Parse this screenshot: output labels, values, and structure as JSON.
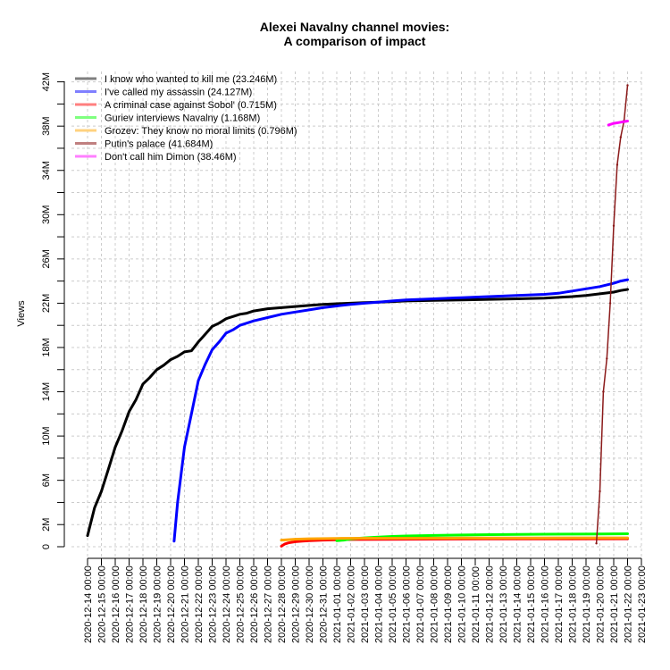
{
  "chart_data": {
    "type": "line",
    "title_line1": "Alexei Navalny channel movies:",
    "title_line2": "A comparison of impact",
    "xlabel": "",
    "ylabel": "Views",
    "x_tick_labels": [
      "2020-12-14 00:00",
      "2020-12-15 00:00",
      "2020-12-16 00:00",
      "2020-12-17 00:00",
      "2020-12-18 00:00",
      "2020-12-19 00:00",
      "2020-12-20 00:00",
      "2020-12-21 00:00",
      "2020-12-22 00:00",
      "2020-12-23 00:00",
      "2020-12-24 00:00",
      "2020-12-25 00:00",
      "2020-12-26 00:00",
      "2020-12-27 00:00",
      "2020-12-28 00:00",
      "2020-12-29 00:00",
      "2020-12-30 00:00",
      "2020-12-31 00:00",
      "2021-01-01 00:00",
      "2021-01-02 00:00",
      "2021-01-03 00:00",
      "2021-01-04 00:00",
      "2021-01-05 00:00",
      "2021-01-06 00:00",
      "2021-01-07 00:00",
      "2021-01-08 00:00",
      "2021-01-09 00:00",
      "2021-01-10 00:00",
      "2021-01-11 00:00",
      "2021-01-12 00:00",
      "2021-01-13 00:00",
      "2021-01-14 00:00",
      "2021-01-15 00:00",
      "2021-01-16 00:00",
      "2021-01-17 00:00",
      "2021-01-18 00:00",
      "2021-01-19 00:00",
      "2021-01-20 00:00",
      "2021-01-21 00:00",
      "2021-01-22 00:00",
      "2021-01-23 00:00"
    ],
    "y_tick_labels": [
      "0",
      "2M",
      "6M",
      "10M",
      "14M",
      "18M",
      "22M",
      "26M",
      "30M",
      "34M",
      "38M",
      "42M"
    ],
    "y_ticks": [
      0,
      2,
      6,
      10,
      14,
      18,
      22,
      26,
      30,
      34,
      38,
      42
    ],
    "y_unit": "millions of views",
    "ylim": [
      0,
      42
    ],
    "grid": true,
    "legend_position": "top-left",
    "series": [
      {
        "name": "I know who wanted to kill me (23.246M)",
        "color": "#000000",
        "legend_color": "#7f7f7f",
        "points": [
          [
            "2020-12-14 00:00",
            1.0
          ],
          [
            "2020-12-14 12:00",
            3.5
          ],
          [
            "2020-12-15 00:00",
            5.0
          ],
          [
            "2020-12-15 12:00",
            7.0
          ],
          [
            "2020-12-16 00:00",
            9.0
          ],
          [
            "2020-12-16 12:00",
            10.5
          ],
          [
            "2020-12-17 00:00",
            12.2
          ],
          [
            "2020-12-17 12:00",
            13.3
          ],
          [
            "2020-12-18 00:00",
            14.7
          ],
          [
            "2020-12-18 12:00",
            15.3
          ],
          [
            "2020-12-19 00:00",
            16.0
          ],
          [
            "2020-12-19 12:00",
            16.4
          ],
          [
            "2020-12-20 00:00",
            16.9
          ],
          [
            "2020-12-20 12:00",
            17.2
          ],
          [
            "2020-12-21 00:00",
            17.6
          ],
          [
            "2020-12-21 12:00",
            17.7
          ],
          [
            "2020-12-22 00:00",
            18.5
          ],
          [
            "2020-12-22 12:00",
            19.2
          ],
          [
            "2020-12-23 00:00",
            19.9
          ],
          [
            "2020-12-23 12:00",
            20.2
          ],
          [
            "2020-12-24 00:00",
            20.6
          ],
          [
            "2020-12-24 12:00",
            20.8
          ],
          [
            "2020-12-25 00:00",
            21.0
          ],
          [
            "2020-12-25 12:00",
            21.1
          ],
          [
            "2020-12-26 00:00",
            21.3
          ],
          [
            "2020-12-27 00:00",
            21.5
          ],
          [
            "2020-12-28 00:00",
            21.6
          ],
          [
            "2020-12-29 00:00",
            21.7
          ],
          [
            "2020-12-30 00:00",
            21.8
          ],
          [
            "2020-12-31 00:00",
            21.9
          ],
          [
            "2021-01-01 00:00",
            21.95
          ],
          [
            "2021-01-02 00:00",
            22.0
          ],
          [
            "2021-01-03 00:00",
            22.05
          ],
          [
            "2021-01-04 00:00",
            22.1
          ],
          [
            "2021-01-05 00:00",
            22.15
          ],
          [
            "2021-01-06 00:00",
            22.2
          ],
          [
            "2021-01-08 00:00",
            22.25
          ],
          [
            "2021-01-10 00:00",
            22.3
          ],
          [
            "2021-01-12 00:00",
            22.35
          ],
          [
            "2021-01-14 00:00",
            22.4
          ],
          [
            "2021-01-16 00:00",
            22.45
          ],
          [
            "2021-01-18 00:00",
            22.6
          ],
          [
            "2021-01-19 00:00",
            22.7
          ],
          [
            "2021-01-20 00:00",
            22.85
          ],
          [
            "2021-01-21 00:00",
            23.0
          ],
          [
            "2021-01-21 12:00",
            23.15
          ],
          [
            "2021-01-22 00:00",
            23.246
          ]
        ]
      },
      {
        "name": "I've called my assassin (24.127M)",
        "color": "#0000ff",
        "legend_color": "#7f7fff",
        "points": [
          [
            "2020-12-20 06:00",
            0.5
          ],
          [
            "2020-12-20 12:00",
            4.0
          ],
          [
            "2020-12-21 00:00",
            9.0
          ],
          [
            "2020-12-21 12:00",
            12.0
          ],
          [
            "2020-12-22 00:00",
            15.0
          ],
          [
            "2020-12-22 12:00",
            16.5
          ],
          [
            "2020-12-23 00:00",
            17.8
          ],
          [
            "2020-12-23 12:00",
            18.5
          ],
          [
            "2020-12-24 00:00",
            19.3
          ],
          [
            "2020-12-24 12:00",
            19.6
          ],
          [
            "2020-12-25 00:00",
            20.0
          ],
          [
            "2020-12-25 12:00",
            20.2
          ],
          [
            "2020-12-26 00:00",
            20.4
          ],
          [
            "2020-12-27 00:00",
            20.7
          ],
          [
            "2020-12-28 00:00",
            21.0
          ],
          [
            "2020-12-29 00:00",
            21.2
          ],
          [
            "2020-12-30 00:00",
            21.4
          ],
          [
            "2020-12-31 00:00",
            21.6
          ],
          [
            "2021-01-01 00:00",
            21.75
          ],
          [
            "2021-01-02 00:00",
            21.9
          ],
          [
            "2021-01-03 00:00",
            22.0
          ],
          [
            "2021-01-04 00:00",
            22.1
          ],
          [
            "2021-01-05 00:00",
            22.2
          ],
          [
            "2021-01-06 00:00",
            22.3
          ],
          [
            "2021-01-08 00:00",
            22.4
          ],
          [
            "2021-01-10 00:00",
            22.5
          ],
          [
            "2021-01-12 00:00",
            22.6
          ],
          [
            "2021-01-14 00:00",
            22.7
          ],
          [
            "2021-01-16 00:00",
            22.8
          ],
          [
            "2021-01-17 00:00",
            22.9
          ],
          [
            "2021-01-18 00:00",
            23.1
          ],
          [
            "2021-01-19 00:00",
            23.3
          ],
          [
            "2021-01-20 00:00",
            23.5
          ],
          [
            "2021-01-21 00:00",
            23.8
          ],
          [
            "2021-01-21 12:00",
            24.0
          ],
          [
            "2021-01-22 00:00",
            24.127
          ]
        ]
      },
      {
        "name": "A criminal case against Sobol' (0.715M)",
        "color": "#ff0000",
        "legend_color": "#ff7f7f",
        "points": [
          [
            "2020-12-28 00:00",
            0.05
          ],
          [
            "2020-12-28 06:00",
            0.25
          ],
          [
            "2020-12-28 12:00",
            0.35
          ],
          [
            "2020-12-29 00:00",
            0.45
          ],
          [
            "2020-12-29 12:00",
            0.5
          ],
          [
            "2020-12-30 00:00",
            0.55
          ],
          [
            "2020-12-31 00:00",
            0.6
          ],
          [
            "2021-01-02 00:00",
            0.65
          ],
          [
            "2021-01-06 00:00",
            0.68
          ],
          [
            "2021-01-12 00:00",
            0.7
          ],
          [
            "2021-01-18 00:00",
            0.71
          ],
          [
            "2021-01-22 00:00",
            0.715
          ]
        ]
      },
      {
        "name": "Guriev interviews Navalny (1.168M)",
        "color": "#00ff00",
        "legend_color": "#7fff7f",
        "points": [
          [
            "2021-01-01 00:00",
            0.55
          ],
          [
            "2021-01-01 12:00",
            0.6
          ],
          [
            "2021-01-02 00:00",
            0.7
          ],
          [
            "2021-01-03 00:00",
            0.8
          ],
          [
            "2021-01-04 00:00",
            0.87
          ],
          [
            "2021-01-05 00:00",
            0.93
          ],
          [
            "2021-01-06 00:00",
            0.97
          ],
          [
            "2021-01-08 00:00",
            1.02
          ],
          [
            "2021-01-10 00:00",
            1.06
          ],
          [
            "2021-01-12 00:00",
            1.09
          ],
          [
            "2021-01-14 00:00",
            1.11
          ],
          [
            "2021-01-16 00:00",
            1.13
          ],
          [
            "2021-01-18 00:00",
            1.14
          ],
          [
            "2021-01-20 00:00",
            1.155
          ],
          [
            "2021-01-22 00:00",
            1.168
          ]
        ]
      },
      {
        "name": "Grozev: They know no moral limits (0.796M)",
        "color": "#ffa500",
        "legend_color": "#ffd27f",
        "points": [
          [
            "2020-12-28 00:00",
            0.6
          ],
          [
            "2020-12-29 00:00",
            0.68
          ],
          [
            "2020-12-30 00:00",
            0.72
          ],
          [
            "2021-01-01 00:00",
            0.75
          ],
          [
            "2021-01-05 00:00",
            0.77
          ],
          [
            "2021-01-10 00:00",
            0.78
          ],
          [
            "2021-01-15 00:00",
            0.79
          ],
          [
            "2021-01-22 00:00",
            0.796
          ]
        ]
      },
      {
        "name": "Putin's palace (41.684M)",
        "color": "#8b1a1a",
        "legend_color": "#c08080",
        "points": [
          [
            "2021-01-19 18:00",
            0.3
          ],
          [
            "2021-01-20 00:00",
            5.0
          ],
          [
            "2021-01-20 06:00",
            14.0
          ],
          [
            "2021-01-20 12:00",
            17.0
          ],
          [
            "2021-01-20 18:00",
            22.0
          ],
          [
            "2021-01-21 00:00",
            29.0
          ],
          [
            "2021-01-21 06:00",
            34.5
          ],
          [
            "2021-01-21 12:00",
            37.0
          ],
          [
            "2021-01-21 18:00",
            38.5
          ],
          [
            "2021-01-22 00:00",
            41.684
          ]
        ]
      },
      {
        "name": "Don't call him Dimon (38.46M)",
        "color": "#ff00ff",
        "legend_color": "#ff7fff",
        "points": [
          [
            "2021-01-20 15:00",
            38.1
          ],
          [
            "2021-01-21 00:00",
            38.25
          ],
          [
            "2021-01-21 12:00",
            38.35
          ],
          [
            "2021-01-22 00:00",
            38.46
          ]
        ]
      }
    ]
  }
}
